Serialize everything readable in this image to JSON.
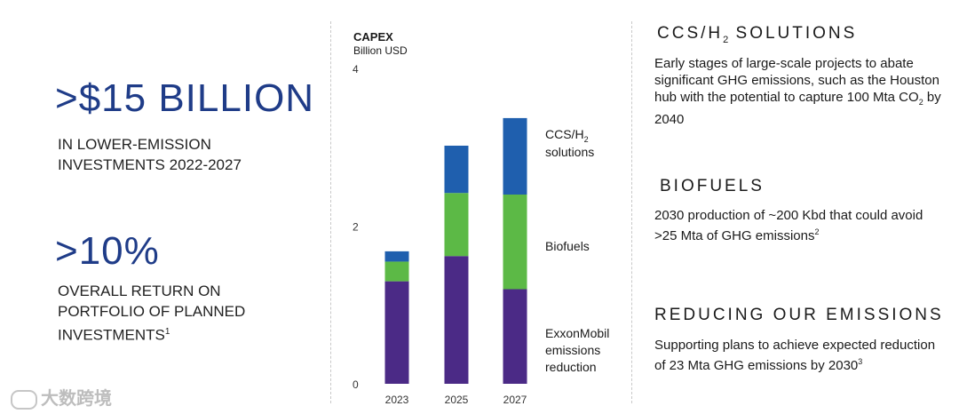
{
  "left": {
    "stat1_value": ">$15 BILLION",
    "stat1_line1": "IN LOWER-EMISSION",
    "stat1_line2": "INVESTMENTS 2022-2027",
    "stat2_value": ">10%",
    "stat2_line1": "OVERALL RETURN ON",
    "stat2_line2": "PORTFOLIO OF PLANNED",
    "stat2_line3": "INVESTMENTS",
    "stat2_sup": "1"
  },
  "chart_data": {
    "type": "bar",
    "stacked": true,
    "title": "CAPEX",
    "ylabel": "Billion USD",
    "categories": [
      "2023",
      "2025",
      "2027"
    ],
    "ylim": [
      0,
      4
    ],
    "yticks": [
      "0",
      "2",
      "4"
    ],
    "series": [
      {
        "name": "ExxonMobil emissions reduction",
        "values": [
          1.3,
          1.62,
          1.2
        ],
        "color": "#4b2a86"
      },
      {
        "name": "Biofuels",
        "values": [
          0.25,
          0.8,
          1.2
        ],
        "color": "#5cb946"
      },
      {
        "name": "CCS/H2 solutions",
        "values": [
          0.13,
          0.6,
          0.97
        ],
        "color": "#1f5fae"
      }
    ],
    "legend_labels": [
      {
        "line1": "CCS/H",
        "sub": "2",
        "line2": "solutions"
      },
      {
        "line1": "Biofuels",
        "sub": "",
        "line2": ""
      },
      {
        "line1": "ExxonMobil",
        "sub": "",
        "line2": "emissions",
        "line3": "reduction"
      }
    ],
    "legend_placement": "right"
  },
  "right": {
    "h1_pre": "CCS/H",
    "h1_sub": "2",
    "h1_post": " SOLUTIONS",
    "p1_a": "Early stages of large-scale projects to abate significant GHG emissions, such as the Houston hub with the potential to capture 100 Mta CO",
    "p1_sub": "2",
    "p1_b": " by 2040",
    "h2": "BIOFUELS",
    "p2": "2030 production of ~200 Kbd that could avoid >25 Mta of GHG emissions",
    "p2_sup": "2",
    "h3": "REDUCING OUR EMISSIONS",
    "p3": "Supporting plans to achieve expected reduction of 23 Mta GHG emissions by 2030",
    "p3_sup": "3"
  },
  "watermark": {
    "text": "大数跨境",
    "icon": "brand-logo-icon"
  }
}
